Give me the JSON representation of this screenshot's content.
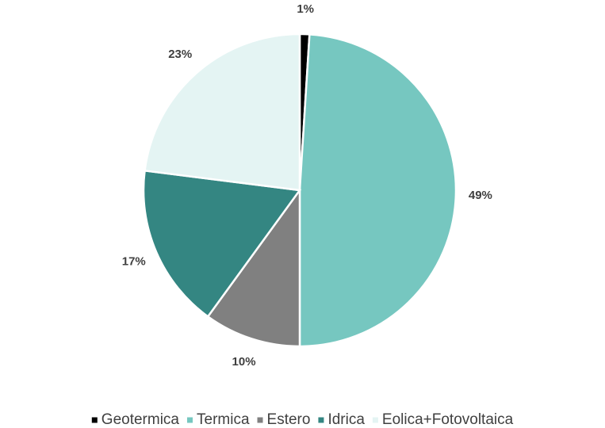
{
  "chart_data": {
    "type": "pie",
    "categories": [
      "Geotermica",
      "Termica",
      "Estero",
      "Idrica",
      "Eolica+Fotovoltaica"
    ],
    "values": [
      1,
      49,
      10,
      17,
      23
    ],
    "value_labels": [
      "1%",
      "49%",
      "10%",
      "17%",
      "23%"
    ],
    "colors": [
      "#000000",
      "#76c7c0",
      "#808080",
      "#348682",
      "#e4f4f3"
    ],
    "legend": "bottom"
  }
}
